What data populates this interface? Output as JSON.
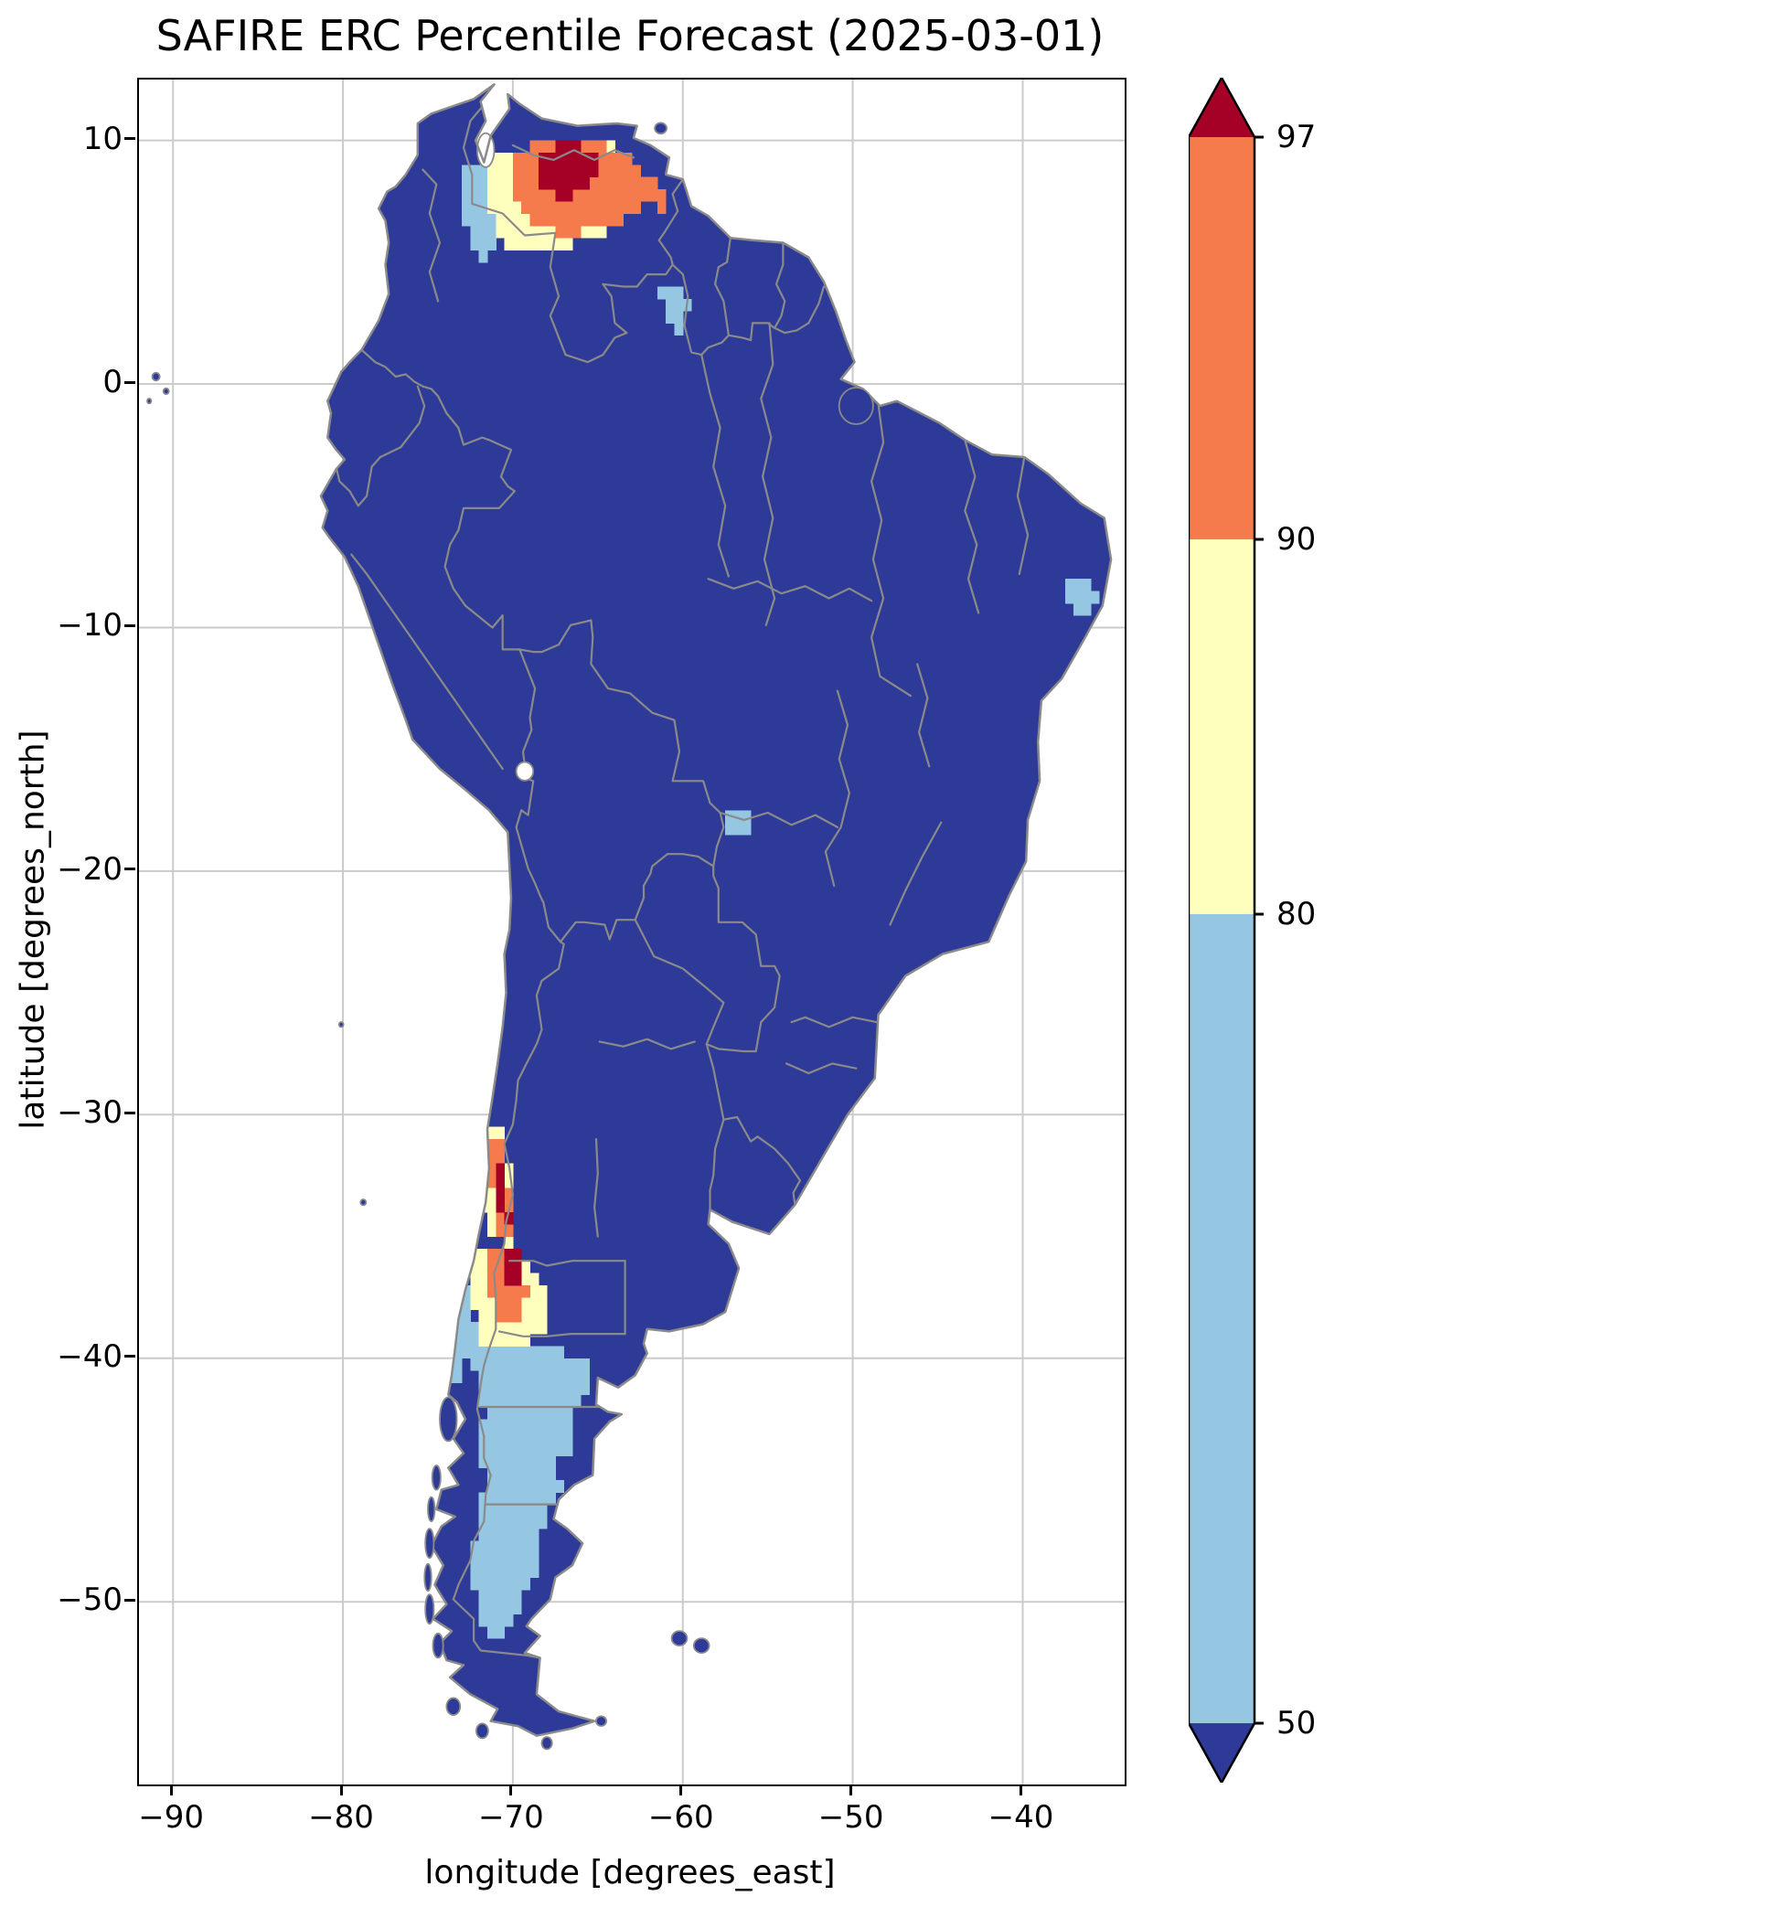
{
  "figure": {
    "title": "SAFIRE ERC Percentile Forecast (2025-03-01)"
  },
  "axes": {
    "xlabel": "longitude [degrees_east]",
    "ylabel": "latitude [degrees_north]",
    "xlim": [
      -92,
      -34
    ],
    "ylim": [
      -57.5,
      12.5
    ],
    "grid": true,
    "xticks": [
      {
        "v": -90,
        "label": "−90"
      },
      {
        "v": -80,
        "label": "−80"
      },
      {
        "v": -70,
        "label": "−70"
      },
      {
        "v": -60,
        "label": "−60"
      },
      {
        "v": -50,
        "label": "−50"
      },
      {
        "v": -40,
        "label": "−40"
      }
    ],
    "yticks": [
      {
        "v": 10,
        "label": "10"
      },
      {
        "v": 0,
        "label": "0"
      },
      {
        "v": -10,
        "label": "−10"
      },
      {
        "v": -20,
        "label": "−20"
      },
      {
        "v": -30,
        "label": "−30"
      },
      {
        "v": -40,
        "label": "−40"
      },
      {
        "v": -50,
        "label": "−50"
      }
    ]
  },
  "colorbar": {
    "position": "right",
    "extend": "both",
    "ticks": [
      {
        "label": "97"
      },
      {
        "label": "90"
      },
      {
        "label": "80"
      },
      {
        "label": "50"
      }
    ],
    "segment_classes": [
      "p97",
      "p90",
      "p80",
      "p50",
      "lt50"
    ]
  },
  "chart_data": {
    "type": "heatmap",
    "title": "SAFIRE ERC Percentile Forecast (2025-03-01)",
    "levels": [
      50,
      80,
      90,
      97
    ],
    "class_colors": {
      "lt50": "#2e3a97",
      "p50": "#96c7e2",
      "p80": "#feffbd",
      "p90": "#f57a4c",
      "p97": "#a50026"
    },
    "class_labels": {
      "lt50": "below 50",
      "p50": "50-80",
      "p80": "80-90",
      "p90": "90-97",
      "p97": "above 97"
    },
    "base_class": "lt50",
    "resolution_deg": 0.5,
    "regions": [
      {
        "name": "patagonia-50-80",
        "class": "p50",
        "polygon": [
          [
            -72.4,
            -38.6
          ],
          [
            -70.0,
            -38.6
          ],
          [
            -69.4,
            -39.3
          ],
          [
            -66.2,
            -39.9
          ],
          [
            -65.4,
            -40.5
          ],
          [
            -65.7,
            -41.7
          ],
          [
            -66.7,
            -42.4
          ],
          [
            -66.3,
            -43.5
          ],
          [
            -67.4,
            -44.3
          ],
          [
            -67.1,
            -45.6
          ],
          [
            -67.9,
            -46.4
          ],
          [
            -68.4,
            -47.5
          ],
          [
            -68.7,
            -48.7
          ],
          [
            -69.4,
            -49.9
          ],
          [
            -69.9,
            -50.9
          ],
          [
            -70.4,
            -51.4
          ],
          [
            -71.7,
            -51.3
          ],
          [
            -72.0,
            -50.1
          ],
          [
            -72.7,
            -48.9
          ],
          [
            -72.3,
            -47.7
          ],
          [
            -71.9,
            -46.3
          ],
          [
            -71.6,
            -44.9
          ],
          [
            -72.0,
            -43.5
          ],
          [
            -71.7,
            -42.1
          ],
          [
            -72.2,
            -40.7
          ],
          [
            -72.7,
            -39.5
          ]
        ]
      },
      {
        "name": "chile-coast-50-80",
        "class": "p50",
        "polygon": [
          [
            -73.8,
            -36.6
          ],
          [
            -72.6,
            -36.8
          ],
          [
            -72.2,
            -38.0
          ],
          [
            -72.6,
            -39.6
          ],
          [
            -73.0,
            -41.2
          ],
          [
            -73.7,
            -41.3
          ],
          [
            -73.9,
            -39.4
          ],
          [
            -73.6,
            -37.8
          ]
        ]
      },
      {
        "name": "upper-paraguay-50-80",
        "class": "p50",
        "polygon": [
          [
            -57.6,
            -17.3
          ],
          [
            -56.3,
            -17.3
          ],
          [
            -55.9,
            -17.9
          ],
          [
            -56.3,
            -18.7
          ],
          [
            -57.2,
            -18.5
          ],
          [
            -57.6,
            -17.9
          ]
        ]
      },
      {
        "name": "northeast-brazil-50-80",
        "class": "p50",
        "polygon": [
          [
            -37.3,
            -8.2
          ],
          [
            -35.8,
            -8.2
          ],
          [
            -35.6,
            -9.0
          ],
          [
            -36.2,
            -9.7
          ],
          [
            -37.2,
            -9.5
          ]
        ]
      },
      {
        "name": "guyana-highlands-50-80",
        "class": "p50",
        "polygon": [
          [
            -61.3,
            4.2
          ],
          [
            -60.0,
            4.2
          ],
          [
            -59.6,
            3.2
          ],
          [
            -60.2,
            2.2
          ],
          [
            -61.2,
            2.5
          ]
        ]
      },
      {
        "name": "venezuela-west-50-80",
        "class": "p50",
        "polygon": [
          [
            -73.2,
            9.2
          ],
          [
            -71.6,
            8.9
          ],
          [
            -70.9,
            7.8
          ],
          [
            -70.8,
            5.8
          ],
          [
            -71.5,
            5.0
          ],
          [
            -72.4,
            5.6
          ],
          [
            -73.1,
            7.0
          ]
        ]
      },
      {
        "name": "venezuela-80-90",
        "class": "p80",
        "polygon": [
          [
            -71.3,
            9.3
          ],
          [
            -67.0,
            10.0
          ],
          [
            -64.6,
            10.0
          ],
          [
            -62.8,
            9.2
          ],
          [
            -62.2,
            8.0
          ],
          [
            -63.5,
            6.6
          ],
          [
            -66.0,
            5.8
          ],
          [
            -68.6,
            5.4
          ],
          [
            -70.4,
            5.6
          ],
          [
            -71.3,
            7.2
          ]
        ]
      },
      {
        "name": "chile-north-80-90",
        "class": "p80",
        "polygon": [
          [
            -71.9,
            -30.4
          ],
          [
            -70.6,
            -30.4
          ],
          [
            -70.3,
            -31.6
          ],
          [
            -70.0,
            -33.0
          ],
          [
            -69.8,
            -34.4
          ],
          [
            -70.2,
            -35.2
          ],
          [
            -71.4,
            -35.2
          ],
          [
            -71.8,
            -33.6
          ],
          [
            -72.0,
            -32.0
          ]
        ]
      },
      {
        "name": "chile-south-80-90",
        "class": "p80",
        "polygon": [
          [
            -72.4,
            -35.4
          ],
          [
            -70.0,
            -35.2
          ],
          [
            -68.6,
            -36.4
          ],
          [
            -67.7,
            -37.4
          ],
          [
            -67.9,
            -38.6
          ],
          [
            -69.0,
            -39.4
          ],
          [
            -70.6,
            -39.8
          ],
          [
            -71.8,
            -39.4
          ],
          [
            -72.4,
            -37.8
          ],
          [
            -72.6,
            -36.4
          ]
        ]
      },
      {
        "name": "venezuela-90-97",
        "class": "p90",
        "polygon": [
          [
            -70.0,
            9.4
          ],
          [
            -67.5,
            10.1
          ],
          [
            -65.0,
            10.0
          ],
          [
            -63.2,
            9.4
          ],
          [
            -61.6,
            8.3
          ],
          [
            -62.3,
            7.2
          ],
          [
            -64.0,
            6.5
          ],
          [
            -66.3,
            6.2
          ],
          [
            -68.6,
            6.3
          ],
          [
            -69.9,
            7.4
          ],
          [
            -70.2,
            8.6
          ]
        ]
      },
      {
        "name": "venezuela-east-90-97",
        "class": "p90",
        "polygon": [
          [
            -61.8,
            7.9
          ],
          [
            -61.0,
            7.9
          ],
          [
            -60.8,
            7.2
          ],
          [
            -61.5,
            6.9
          ]
        ]
      },
      {
        "name": "chile-north-90-97",
        "class": "p90",
        "polygon": [
          [
            -71.4,
            -31.0
          ],
          [
            -70.6,
            -31.0
          ],
          [
            -70.3,
            -32.4
          ],
          [
            -70.1,
            -33.8
          ],
          [
            -70.0,
            -34.9
          ],
          [
            -70.8,
            -35.0
          ],
          [
            -71.2,
            -33.8
          ],
          [
            -71.3,
            -32.4
          ]
        ]
      },
      {
        "name": "chile-south-90-97",
        "class": "p90",
        "polygon": [
          [
            -71.2,
            -35.4
          ],
          [
            -69.9,
            -35.3
          ],
          [
            -69.3,
            -36.3
          ],
          [
            -69.2,
            -37.4
          ],
          [
            -69.6,
            -38.3
          ],
          [
            -70.6,
            -38.6
          ],
          [
            -71.3,
            -37.6
          ],
          [
            -71.4,
            -36.4
          ]
        ]
      },
      {
        "name": "venezuela-97",
        "class": "p97",
        "polygon": [
          [
            -68.3,
            9.6
          ],
          [
            -66.6,
            9.9
          ],
          [
            -65.2,
            9.5
          ],
          [
            -64.8,
            8.7
          ],
          [
            -65.6,
            7.9
          ],
          [
            -67.3,
            7.6
          ],
          [
            -68.4,
            8.2
          ]
        ]
      },
      {
        "name": "chile-north-97",
        "class": "p97",
        "polygon": [
          [
            -71.0,
            -32.0
          ],
          [
            -70.5,
            -32.0
          ],
          [
            -70.4,
            -33.3
          ],
          [
            -70.1,
            -34.4
          ],
          [
            -70.7,
            -34.5
          ],
          [
            -70.9,
            -33.3
          ]
        ]
      },
      {
        "name": "chile-south-97",
        "class": "p97",
        "polygon": [
          [
            -70.6,
            -35.5
          ],
          [
            -69.8,
            -35.4
          ],
          [
            -69.4,
            -36.2
          ],
          [
            -69.9,
            -37.3
          ],
          [
            -70.5,
            -36.9
          ]
        ]
      }
    ]
  }
}
